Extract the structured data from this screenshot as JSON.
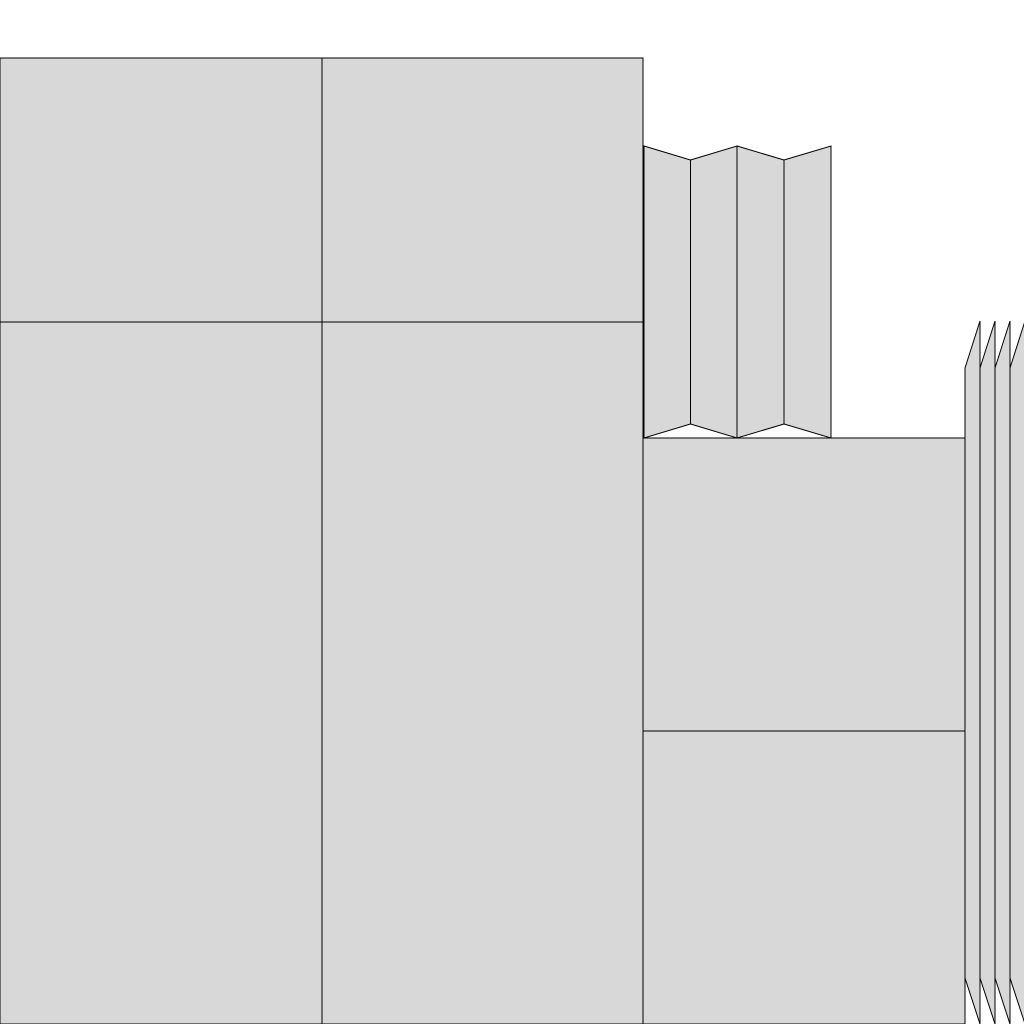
{
  "diagram": {
    "fill_color": "#d8d8d8",
    "stroke_color": "#000000",
    "background_color": "#ffffff",
    "panels": [
      {
        "name": "panel-top-left"
      },
      {
        "name": "panel-top-middle"
      },
      {
        "name": "panel-bottom-left"
      },
      {
        "name": "panel-bottom-middle"
      },
      {
        "name": "panel-right-upper"
      },
      {
        "name": "panel-right-lower"
      }
    ],
    "accordion_fold_count": 4,
    "edge_fold_count": 4
  }
}
